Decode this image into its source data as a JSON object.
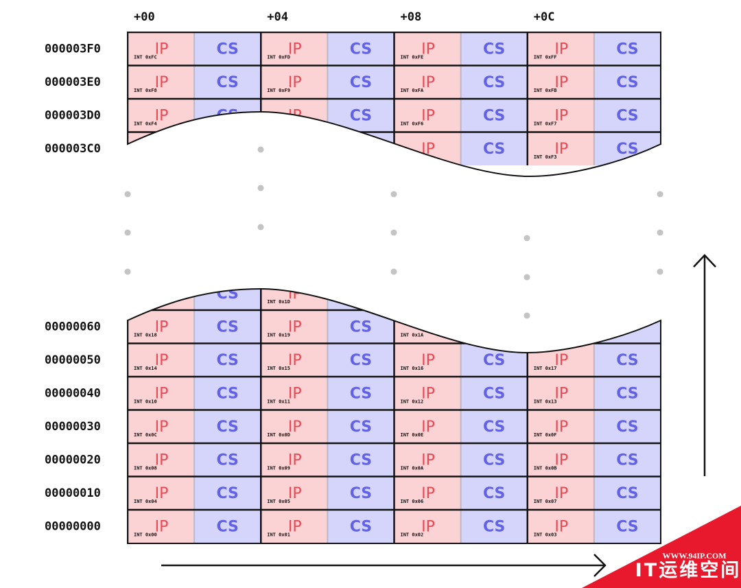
{
  "column_headers": [
    "+00",
    "+04",
    "+08",
    "+0C"
  ],
  "cell_labels": {
    "ip": "IP",
    "cs": "CS"
  },
  "top_rows": [
    {
      "address": "000003F0",
      "ints": [
        "INT 0xFC",
        "INT 0xFD",
        "INT 0xFE",
        "INT 0xFF"
      ]
    },
    {
      "address": "000003E0",
      "ints": [
        "INT 0xF8",
        "INT 0xF9",
        "INT 0xFA",
        "INT 0xFB"
      ]
    },
    {
      "address": "000003D0",
      "ints": [
        "INT 0xF4",
        null,
        "INT 0xF6",
        "INT 0xF7"
      ]
    },
    {
      "address": "000003C0",
      "ints": [
        null,
        null,
        null,
        "INT 0xF3"
      ]
    }
  ],
  "bottom_rows": [
    {
      "address": null,
      "ints": [
        null,
        "INT 0x1D",
        null,
        null
      ]
    },
    {
      "address": "00000060",
      "ints": [
        "INT 0x18",
        "INT 0x19",
        "INT 0x1A",
        null
      ]
    },
    {
      "address": "00000050",
      "ints": [
        "INT 0x14",
        "INT 0x15",
        "INT 0x16",
        "INT 0x17"
      ]
    },
    {
      "address": "00000040",
      "ints": [
        "INT 0x10",
        "INT 0x11",
        "INT 0x12",
        "INT 0x13"
      ]
    },
    {
      "address": "00000030",
      "ints": [
        "INT 0x0C",
        "INT 0x0D",
        "INT 0x0E",
        "INT 0x0F"
      ]
    },
    {
      "address": "00000020",
      "ints": [
        "INT 0x08",
        "INT 0x09",
        "INT 0x0A",
        "INT 0x0B"
      ]
    },
    {
      "address": "00000010",
      "ints": [
        "INT 0x04",
        "INT 0x05",
        "INT 0x06",
        "INT 0x07"
      ]
    },
    {
      "address": "00000000",
      "ints": [
        "INT 0x00",
        "INT 0x01",
        "INT 0x02",
        "INT 0x03"
      ]
    }
  ],
  "watermark": {
    "url": "WWW.94IP.COM",
    "name": "IT运维空间"
  }
}
